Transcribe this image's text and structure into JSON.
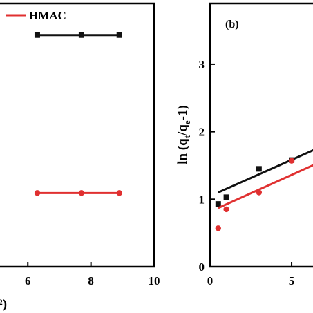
{
  "colors": {
    "black_series": "#111111",
    "red_series": "#e03030",
    "axis": "#000000"
  },
  "chart_data": [
    {
      "type": "line",
      "x_ticks": [
        "6",
        "8",
        "10"
      ],
      "xlim": [
        4.9,
        10
      ],
      "ylim": [
        0,
        10
      ],
      "xlabel_fragment": "²)",
      "legend": [
        {
          "name": "HMAC",
          "color": "#e03030"
        }
      ],
      "series": [
        {
          "name": "",
          "color": "#111111",
          "marker": "square",
          "x": [
            6.3,
            7.7,
            8.9
          ],
          "y": [
            8.8,
            8.8,
            8.8
          ]
        },
        {
          "name": "HMAC",
          "color": "#e03030",
          "marker": "circle",
          "x": [
            6.3,
            7.7,
            8.9
          ],
          "y": [
            2.8,
            2.8,
            2.8
          ]
        }
      ]
    },
    {
      "type": "scatter",
      "panel_label": "(b)",
      "ylabel": "ln (q",
      "ylabel_sub1": "t",
      "ylabel_mid": "/q",
      "ylabel_sub2": "e",
      "ylabel_end": "-1)",
      "x_ticks": [
        "0",
        "5"
      ],
      "y_ticks": [
        "0",
        "1",
        "2",
        "3"
      ],
      "xlim": [
        0,
        7.2
      ],
      "ylim": [
        0,
        3.9
      ],
      "series": [
        {
          "name": "",
          "color": "#111111",
          "marker": "square",
          "x": [
            0.5,
            1,
            3,
            5
          ],
          "y": [
            0.93,
            1.03,
            1.45,
            1.58
          ],
          "fit": {
            "x": [
              0.5,
              7.2
            ],
            "y": [
              1.1,
              1.82
            ]
          }
        },
        {
          "name": "",
          "color": "#e03030",
          "marker": "circle",
          "x": [
            0.5,
            1,
            3,
            5
          ],
          "y": [
            0.57,
            0.85,
            1.1,
            1.57
          ],
          "fit": {
            "x": [
              0.5,
              7.2
            ],
            "y": [
              0.87,
              1.6
            ]
          }
        }
      ]
    }
  ]
}
